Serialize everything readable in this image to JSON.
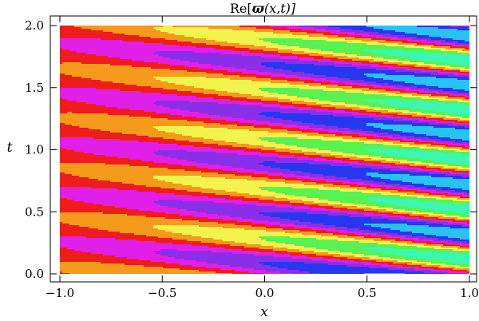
{
  "chart_data": {
    "type": "heatmap",
    "title_prefix": "Re[",
    "title_symbol": "ϖ",
    "title_suffix": "(x,t)]",
    "xlabel": "x",
    "ylabel": "t",
    "xlim": [
      -1.0,
      1.0
    ],
    "ylim": [
      0.0,
      2.0
    ],
    "x_ticks": [
      "-1.0",
      "-0.5",
      "0.0",
      "0.5",
      "1.0"
    ],
    "y_ticks": [
      "0.0",
      "0.5",
      "1.0",
      "1.5",
      "2.0"
    ],
    "grid": false,
    "legend": false,
    "bands": [
      {
        "name": "cyan",
        "color": "#27c3f3"
      },
      {
        "name": "blue",
        "color": "#2637f0"
      },
      {
        "name": "violet",
        "color": "#8a2fe8"
      },
      {
        "name": "magenta",
        "color": "#e01fe8"
      },
      {
        "name": "red",
        "color": "#ef1c1c"
      },
      {
        "name": "orange",
        "color": "#f59a1b"
      },
      {
        "name": "yellow",
        "color": "#f3f34d"
      },
      {
        "name": "green",
        "color": "#58f252"
      },
      {
        "name": "teal",
        "color": "#3bf7b2"
      }
    ]
  }
}
